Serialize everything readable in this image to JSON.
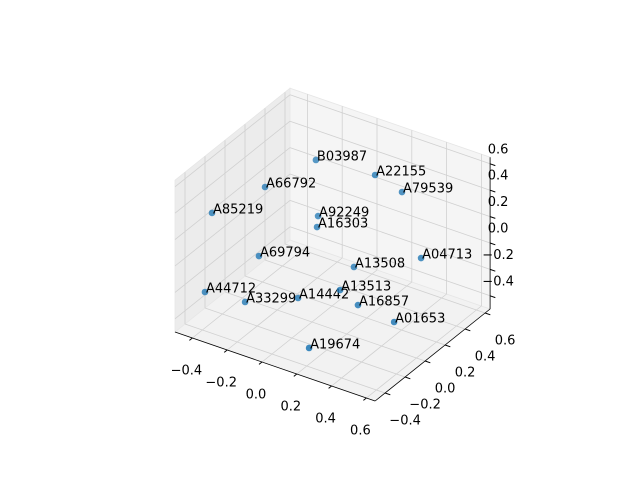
{
  "chart_data": {
    "type": "scatter3d",
    "color": "#1f77b4",
    "labels": [
      "B03987",
      "A22155",
      "A79539",
      "A66792",
      "A85219",
      "A92249",
      "A16303",
      "A04713",
      "A69794",
      "A13508",
      "A44712",
      "A33299",
      "A14442",
      "A13513",
      "A16857",
      "A01653",
      "A19674"
    ],
    "x": [
      -0.135,
      0.178,
      0.239,
      -0.27,
      -0.419,
      -0.11,
      -0.059,
      0.382,
      -0.213,
      0.091,
      -0.448,
      -0.303,
      -0.044,
      0.151,
      0.232,
      0.396,
      0.185
    ],
    "y": [
      0.274,
      0.321,
      0.484,
      0.0,
      -0.271,
      0.252,
      0.153,
      0.426,
      -0.16,
      0.261,
      -0.291,
      -0.142,
      -0.063,
      0.018,
      0.056,
      0.132,
      -0.351
    ],
    "z": [
      0.5,
      0.5,
      0.3,
      0.4,
      0.3,
      0.1,
      0.1,
      -0.1,
      0.0,
      -0.2,
      -0.3,
      -0.4,
      -0.3,
      -0.2,
      -0.3,
      -0.4,
      -0.4
    ],
    "xlim": [
      -0.5,
      0.65
    ],
    "ylim": [
      -0.5,
      0.65
    ],
    "zlim": [
      -0.5,
      0.65
    ],
    "xticks": [
      {
        "value": -0.4,
        "label": "−0.4"
      },
      {
        "value": -0.2,
        "label": "−0.2"
      },
      {
        "value": 0,
        "label": "0.0"
      },
      0.2,
      0.4,
      0.6
    ],
    "yticks": [
      {
        "value": -0.4,
        "label": "−0.4"
      },
      {
        "value": -0.2,
        "label": "−0.2"
      },
      {
        "value": 0,
        "label": "0.0"
      },
      0.2,
      0.4,
      0.6
    ],
    "zticks": [
      {
        "value": -0.4,
        "label": "−0.4"
      },
      {
        "value": -0.2,
        "label": "−0.2"
      },
      {
        "value": 0,
        "label": "0.0"
      },
      0.2,
      0.4,
      0.6
    ],
    "grid": true
  }
}
